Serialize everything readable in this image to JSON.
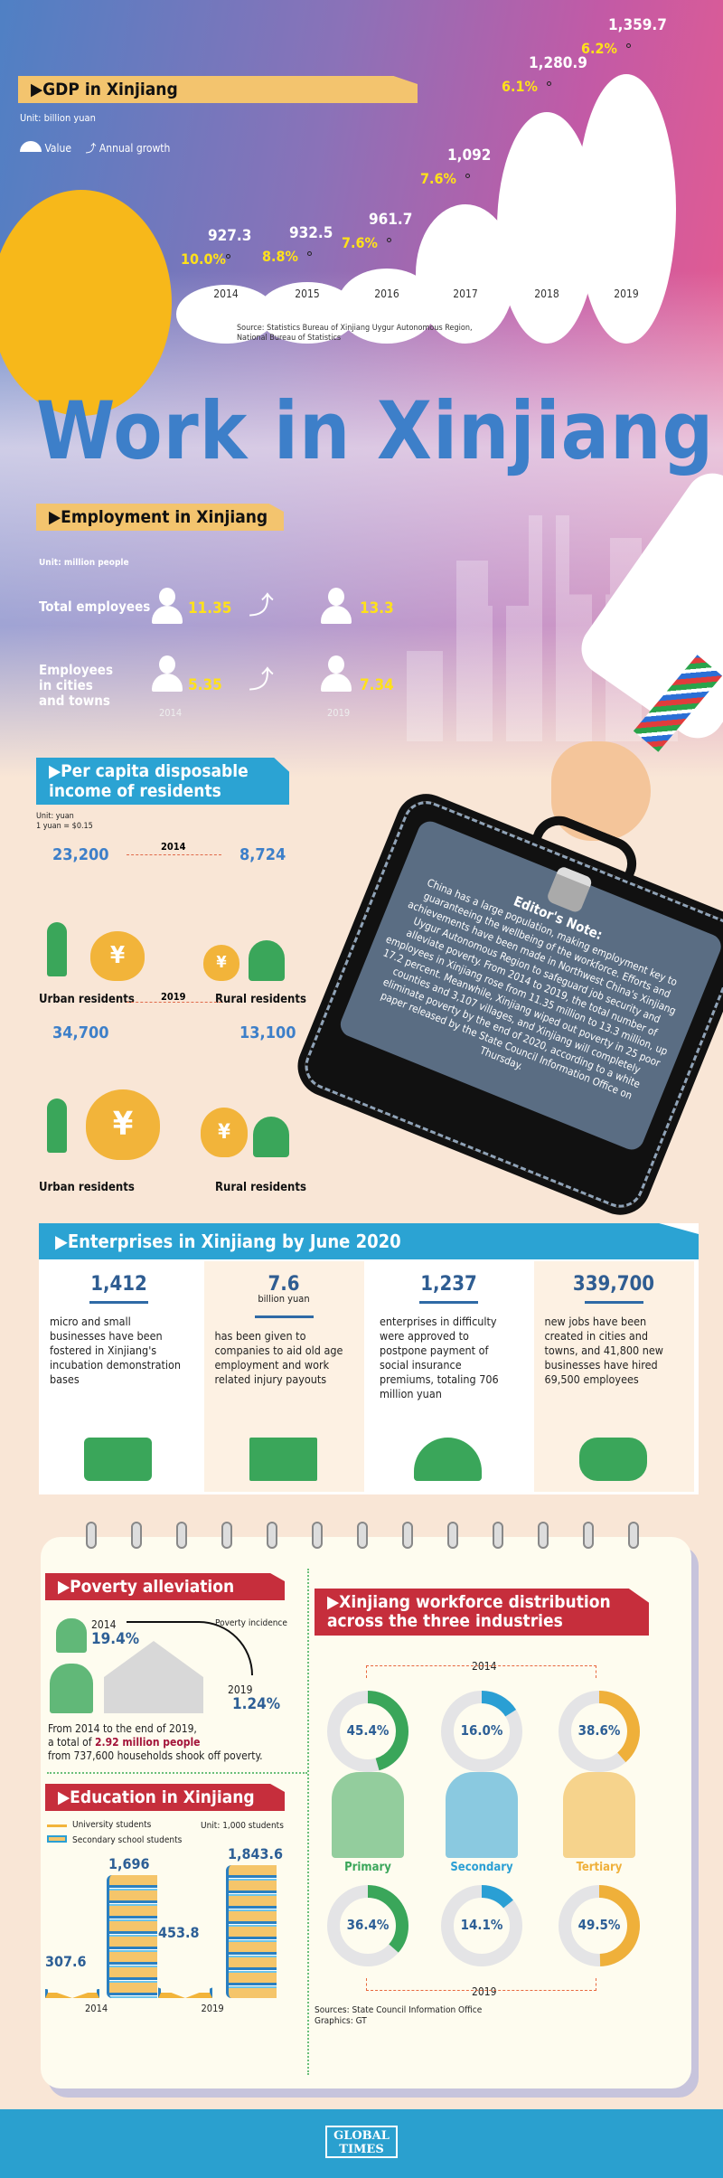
{
  "gdp": {
    "header": "GDP in Xinjiang",
    "unit": "Unit: billion yuan",
    "legend_value": "Value",
    "legend_growth": "Annual growth",
    "source": "Source: Statistics Bureau of Xinjiang Uygur Autonomous Region,",
    "source2": "National Bureau of Statistics"
  },
  "title": "Work in Xinjiang",
  "employment": {
    "header": "Employment in Xinjiang",
    "unit": "Unit: million people",
    "total_label": "Total employees",
    "cities_label": "Employees in cities and towns",
    "total_2014": "11.35",
    "total_2019": "13.3",
    "cities_2014": "5.35",
    "cities_2019": "7.34",
    "year1": "2014",
    "year2": "2019"
  },
  "income": {
    "header": "Per capita disposable income of residents",
    "unit": "Unit: yuan",
    "rate": "1 yuan = $0.15",
    "y2014": "2014",
    "y2019": "2019",
    "urban_2014": "23,200",
    "rural_2014": "8,724",
    "urban_2019": "34,700",
    "rural_2019": "13,100",
    "urban_label": "Urban residents",
    "rural_label": "Rural residents",
    "currency_symbol": "¥"
  },
  "editor": {
    "heading": "Editor's Note:",
    "text": "China has a large population, making employment key to guaranteeing the wellbeing of the workforce. Efforts and achievements have been made in Northwest China's Xinjiang Uygur Autonomous Region to safeguard job security and alleviate poverty. From 2014 to 2019, the total number of employees in Xinjiang rose from 11.35 million to 13.3 million, up 17.2 percent. Meanwhile, Xinjiang wiped out poverty in 25 poor counties and 3,107 villages, and Xinjiang will completely eliminate poverty by the end of 2020, according to a white paper released by the State Council Information Office on Thursday."
  },
  "enterprises": {
    "header": "Enterprises in Xinjiang by June 2020",
    "items": [
      {
        "num": "1,412",
        "sub": "",
        "text": "micro and small businesses have been fostered in Xinjiang's incubation demonstration bases",
        "icon": "office-worker-icon"
      },
      {
        "num": "7.6",
        "sub": "billion yuan",
        "text": "has been given to companies to aid old age employment and work related injury payouts",
        "icon": "bank-icon"
      },
      {
        "num": "1,237",
        "sub": "",
        "text": "enterprises in difficulty were approved to postpone payment of social insurance premiums, totaling 706 million yuan",
        "icon": "umbrella-icon"
      },
      {
        "num": "339,700",
        "sub": "",
        "text": "new jobs have been created in cities and towns, and 41,800 new businesses have hired 69,500 employees",
        "icon": "group-icon"
      }
    ]
  },
  "poverty": {
    "header": "Poverty alleviation",
    "y2014": "2014",
    "v2014": "19.4%",
    "label": "Poverty incidence",
    "y2019": "2019",
    "v2019": "1.24%",
    "text1": "From 2014 to the end of 2019,",
    "text2a": "a total of ",
    "text2b": "2.92 million people",
    "text3": "from 737,600 households shook off poverty."
  },
  "education": {
    "header": "Education in Xinjiang",
    "legend_uni": "University students",
    "legend_sec": "Secondary school students",
    "unit": "Unit: 1,000 students"
  },
  "workforce": {
    "header1": "Xinjiang workforce distribution",
    "header2": "across the three industries",
    "y2014": "2014",
    "y2019": "2019",
    "sources": "Sources: State Council Information Office",
    "graphics": "Graphics: GT"
  },
  "footer": {
    "logo": "GLOBAL TIMES"
  },
  "colors": {
    "yellow_header": "#f3c46e",
    "blue_header": "#2ba3d3",
    "red_header": "#c62e3c",
    "primary": "#3aa65a",
    "secondary": "#2a9fd4",
    "tertiary": "#efb03a",
    "number_blue": "#2d5f96"
  },
  "chart_data": [
    {
      "type": "line",
      "title": "GDP in Xinjiang",
      "unit": "billion yuan",
      "categories": [
        "2014",
        "2015",
        "2016",
        "2017",
        "2018",
        "2019"
      ],
      "series": [
        {
          "name": "Value",
          "values": [
            927.3,
            932.5,
            961.7,
            1092,
            1280.9,
            1359.7
          ],
          "labels": [
            "927.3",
            "932.5",
            "961.7",
            "1,092",
            "1,280.9",
            "1,359.7"
          ]
        },
        {
          "name": "Annual growth",
          "values": [
            10.0,
            8.8,
            7.6,
            7.6,
            6.1,
            6.2
          ],
          "labels": [
            "10.0%",
            "8.8%",
            "7.6%",
            "7.6%",
            "6.1%",
            "6.2%"
          ]
        }
      ]
    },
    {
      "type": "pie",
      "title": "Xinjiang workforce distribution across the three industries",
      "categories": [
        "Primary",
        "Secondary",
        "Tertiary"
      ],
      "series": [
        {
          "name": "2014",
          "values": [
            45.4,
            16.0,
            38.6
          ],
          "labels": [
            "45.4%",
            "16.0%",
            "38.6%"
          ]
        },
        {
          "name": "2019",
          "values": [
            36.4,
            14.1,
            49.5
          ],
          "labels": [
            "36.4%",
            "14.1%",
            "49.5%"
          ]
        }
      ]
    },
    {
      "type": "bar",
      "title": "Education in Xinjiang",
      "unit": "1,000 students",
      "categories": [
        "2014",
        "2019"
      ],
      "series": [
        {
          "name": "University students",
          "values": [
            307.6,
            453.8
          ],
          "labels": [
            "307.6",
            "453.8"
          ]
        },
        {
          "name": "Secondary school students",
          "values": [
            1696,
            1843.6
          ],
          "labels": [
            "1,696",
            "1,843.6"
          ]
        }
      ]
    }
  ]
}
